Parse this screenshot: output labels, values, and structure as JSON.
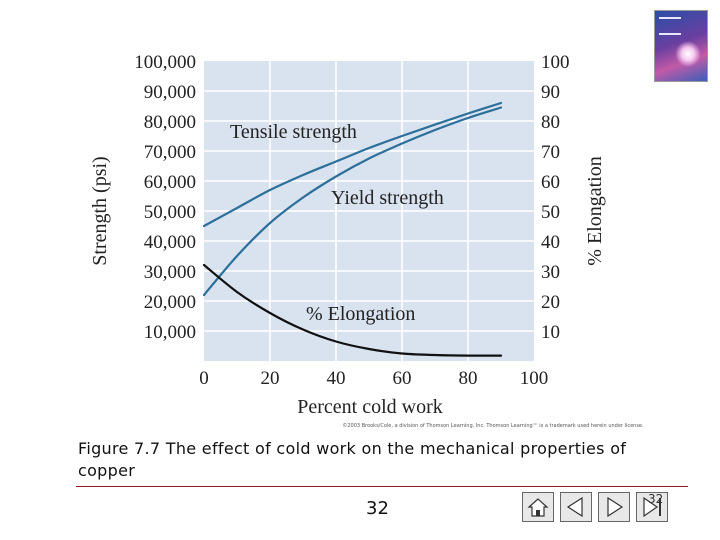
{
  "chart_data": {
    "type": "line",
    "title": "",
    "xlabel": "Percent cold work",
    "ylabel_left": "Strength (psi)",
    "ylabel_right": "% Elongation",
    "xlim": [
      0,
      100
    ],
    "ylim_left": [
      0,
      100000
    ],
    "ylim_right": [
      0,
      100
    ],
    "x_ticks": [
      "0",
      "20",
      "40",
      "60",
      "80",
      "100"
    ],
    "y_ticks_left": [
      "10,000",
      "20,000",
      "30,000",
      "40,000",
      "50,000",
      "60,000",
      "70,000",
      "80,000",
      "90,000",
      "100,000"
    ],
    "y_ticks_right": [
      "10",
      "20",
      "30",
      "40",
      "50",
      "60",
      "70",
      "80",
      "90",
      "100"
    ],
    "grid": true,
    "series": [
      {
        "name": "Tensile strength",
        "axis": "left",
        "color": "#2b6f9a",
        "x": [
          0,
          10,
          20,
          30,
          40,
          50,
          60,
          70,
          80,
          90
        ],
        "values": [
          45000,
          51000,
          57000,
          62000,
          66500,
          71000,
          75000,
          78800,
          82500,
          86000
        ]
      },
      {
        "name": "Yield strength",
        "axis": "left",
        "color": "#2b6f9a",
        "x": [
          0,
          10,
          20,
          30,
          40,
          50,
          60,
          70,
          80,
          90
        ],
        "values": [
          22000,
          35000,
          46000,
          54500,
          61500,
          67500,
          72500,
          77000,
          81000,
          84500
        ]
      },
      {
        "name": "% Elongation",
        "axis": "right",
        "color": "#111111",
        "x": [
          0,
          10,
          20,
          30,
          40,
          50,
          60,
          70,
          80,
          90
        ],
        "values": [
          32,
          23,
          16,
          10.5,
          6.5,
          4,
          2.5,
          2,
          1.8,
          1.8
        ]
      }
    ],
    "annotations": [
      {
        "text": "Tensile strength",
        "near_series": "Tensile strength"
      },
      {
        "text": "Yield strength",
        "near_series": "Yield strength"
      },
      {
        "text": "% Elongation",
        "near_series": "% Elongation"
      }
    ]
  },
  "copyright": "©2003 Brooks/Cole, a division of Thomson Learning, Inc. Thomson Learning™ is a trademark used herein under license.",
  "caption": "Figure 7.7 The effect of cold work on the mechanical properties of copper",
  "page_number": "32",
  "slide_corner_number": "32"
}
